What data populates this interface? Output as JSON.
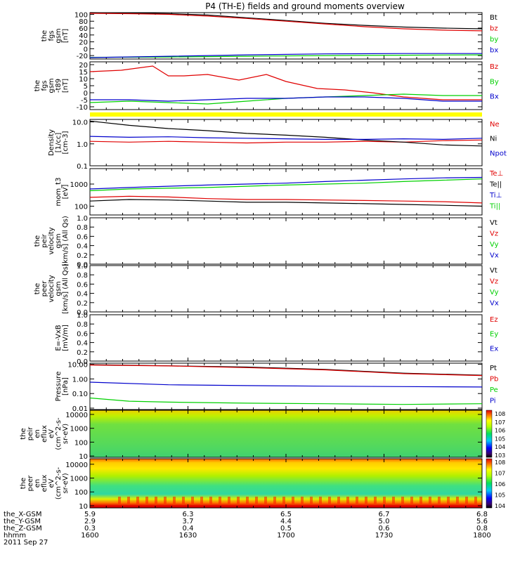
{
  "title": "P4 (TH-E) fields and ground moments overview",
  "colors": {
    "black": "#000000",
    "red": "#e00000",
    "green": "#00d000",
    "blue": "#0000cc",
    "yellow": "#ffff00"
  },
  "time_axis": {
    "rows": [
      {
        "label": "the_X-GSM",
        "values": [
          "5.9",
          "6.3",
          "6.5",
          "6.7",
          "6.8"
        ]
      },
      {
        "label": "the_Y-GSM",
        "values": [
          "2.9",
          "3.7",
          "4.4",
          "5.0",
          "5.6"
        ]
      },
      {
        "label": "the_Z-GSM",
        "values": [
          "0.3",
          "0.4",
          "0.5",
          "0.6",
          "0.8"
        ]
      },
      {
        "label": "hhmm",
        "values": [
          "1600",
          "1630",
          "1700",
          "1730",
          "1800"
        ]
      }
    ],
    "date": "2011 Sep 27"
  },
  "chart_data": [
    {
      "id": "p1",
      "type": "line",
      "ylabel": [
        "the",
        "fgs",
        "gsm",
        "[nT]"
      ],
      "yscale": "linear",
      "ylim": [
        -30,
        105
      ],
      "ticks": [
        "100",
        "80",
        "60",
        "40",
        "20",
        "0",
        "-20"
      ],
      "tick_values": [
        100,
        80,
        60,
        40,
        20,
        0,
        -20
      ],
      "series": [
        {
          "name": "Bt",
          "color": "black",
          "x": [
            0,
            0.1,
            0.2,
            0.3,
            0.4,
            0.5,
            0.6,
            0.7,
            0.8,
            0.9,
            1
          ],
          "values": [
            105,
            104,
            102,
            98,
            90,
            82,
            74,
            68,
            63,
            60,
            58
          ]
        },
        {
          "name": "bz",
          "color": "red",
          "x": [
            0,
            0.1,
            0.2,
            0.3,
            0.4,
            0.5,
            0.6,
            0.7,
            0.8,
            0.9,
            1
          ],
          "values": [
            103,
            102,
            100,
            95,
            88,
            80,
            72,
            64,
            58,
            54,
            52
          ]
        },
        {
          "name": "by",
          "color": "green",
          "x": [
            0,
            0.2,
            0.4,
            0.6,
            0.8,
            1
          ],
          "values": [
            -25,
            -24,
            -22,
            -20,
            -19,
            -18
          ]
        },
        {
          "name": "bx",
          "color": "blue",
          "x": [
            0,
            0.2,
            0.4,
            0.6,
            0.8,
            1
          ],
          "values": [
            -26,
            -22,
            -18,
            -15,
            -14,
            -14
          ]
        }
      ]
    },
    {
      "id": "p2",
      "type": "line",
      "ylabel": [
        "the",
        "fgs",
        "gsm",
        "-t89",
        "[nT]"
      ],
      "yscale": "linear",
      "ylim": [
        -12,
        22
      ],
      "ticks": [
        "20",
        "15",
        "10",
        "5",
        "0",
        "-5",
        "-10"
      ],
      "tick_values": [
        20,
        15,
        10,
        5,
        0,
        -5,
        -10
      ],
      "series": [
        {
          "name": "Bz",
          "color": "red",
          "x": [
            0,
            0.08,
            0.16,
            0.2,
            0.24,
            0.3,
            0.38,
            0.45,
            0.5,
            0.58,
            0.65,
            0.72,
            0.8,
            0.9,
            1
          ],
          "values": [
            15,
            16,
            19,
            12,
            12,
            13,
            9,
            13,
            8,
            3,
            2,
            0,
            -3,
            -5,
            -5
          ]
        },
        {
          "name": "By",
          "color": "green",
          "x": [
            0,
            0.1,
            0.2,
            0.3,
            0.4,
            0.5,
            0.6,
            0.7,
            0.8,
            0.9,
            1
          ],
          "values": [
            -7,
            -6,
            -7,
            -8,
            -6,
            -4,
            -3,
            -2,
            -1,
            -2,
            -2
          ]
        },
        {
          "name": "Bx",
          "color": "blue",
          "x": [
            0,
            0.1,
            0.2,
            0.3,
            0.4,
            0.5,
            0.6,
            0.7,
            0.8,
            0.9,
            1
          ],
          "values": [
            -5,
            -5,
            -6,
            -5,
            -4,
            -4,
            -3,
            -3,
            -4,
            -6,
            -6
          ]
        }
      ]
    },
    {
      "id": "p3",
      "type": "line",
      "ylabel": [
        "Density",
        "[1/cc]",
        "[cm-3]"
      ],
      "yscale": "log",
      "ylim": [
        0.1,
        13
      ],
      "ticks": [
        "10.0",
        "1.0",
        "0.1"
      ],
      "tick_values": [
        10,
        1,
        0.1
      ],
      "series": [
        {
          "name": "Ne",
          "color": "red",
          "x": [
            0,
            0.1,
            0.2,
            0.3,
            0.4,
            0.5,
            0.6,
            0.7,
            0.8,
            0.9,
            1
          ],
          "values": [
            1.3,
            1.2,
            1.3,
            1.2,
            1.1,
            1.2,
            1.2,
            1.3,
            1.2,
            1.4,
            1.5
          ]
        },
        {
          "name": "Ni",
          "color": "black",
          "x": [
            0,
            0.1,
            0.2,
            0.3,
            0.4,
            0.5,
            0.6,
            0.7,
            0.8,
            0.9,
            1
          ],
          "values": [
            11,
            7,
            5,
            4,
            3,
            2.5,
            2,
            1.5,
            1.2,
            0.9,
            0.8
          ]
        },
        {
          "name": "Npot",
          "color": "blue",
          "x": [
            0,
            0.1,
            0.2,
            0.3,
            0.4,
            0.5,
            0.6,
            0.7,
            0.8,
            0.9,
            1
          ],
          "values": [
            2.2,
            2.0,
            2.1,
            1.9,
            1.8,
            1.7,
            1.6,
            1.6,
            1.7,
            1.6,
            1.8
          ]
        }
      ]
    },
    {
      "id": "p4",
      "type": "line",
      "ylabel": [
        "mom_t3",
        "[eV]"
      ],
      "yscale": "log",
      "ylim": [
        40,
        5000
      ],
      "ticks": [
        "1000",
        "100"
      ],
      "tick_values": [
        1000,
        100
      ],
      "series": [
        {
          "name": "Te⊥",
          "color": "red",
          "x": [
            0,
            0.1,
            0.2,
            0.3,
            0.4,
            0.5,
            0.6,
            0.7,
            0.8,
            0.9,
            1
          ],
          "values": [
            250,
            280,
            260,
            220,
            200,
            200,
            190,
            180,
            170,
            160,
            140
          ]
        },
        {
          "name": "Te||",
          "color": "black",
          "x": [
            0,
            0.1,
            0.2,
            0.3,
            0.4,
            0.5,
            0.6,
            0.7,
            0.8,
            0.9,
            1
          ],
          "values": [
            170,
            200,
            190,
            170,
            150,
            150,
            140,
            130,
            120,
            110,
            100
          ]
        },
        {
          "name": "Ti⊥",
          "color": "blue",
          "x": [
            0,
            0.1,
            0.2,
            0.3,
            0.4,
            0.5,
            0.6,
            0.7,
            0.8,
            0.9,
            1
          ],
          "values": [
            600,
            700,
            800,
            900,
            1000,
            1100,
            1300,
            1500,
            1700,
            1900,
            2000
          ]
        },
        {
          "name": "Ti||",
          "color": "green",
          "x": [
            0,
            0.1,
            0.2,
            0.3,
            0.4,
            0.5,
            0.6,
            0.7,
            0.8,
            0.9,
            1
          ],
          "values": [
            500,
            600,
            650,
            700,
            800,
            900,
            1000,
            1100,
            1300,
            1500,
            1700
          ]
        }
      ]
    },
    {
      "id": "p5",
      "type": "line",
      "ylabel": [
        "the",
        "peir",
        "velocity",
        "gsm",
        "[km/s] (All Qs)"
      ],
      "yscale": "linear",
      "ylim": [
        0,
        1
      ],
      "ticks": [
        "1.0",
        "0.8",
        "0.6",
        "0.4",
        "0.2",
        "0.0"
      ],
      "tick_values": [
        1,
        0.8,
        0.6,
        0.4,
        0.2,
        0
      ],
      "series": [
        {
          "name": "Vt",
          "color": "black",
          "values": []
        },
        {
          "name": "Vz",
          "color": "red",
          "values": []
        },
        {
          "name": "Vy",
          "color": "green",
          "values": []
        },
        {
          "name": "Vx",
          "color": "blue",
          "values": []
        }
      ]
    },
    {
      "id": "p6",
      "type": "line",
      "ylabel": [
        "the",
        "peer",
        "velocity",
        "gsm",
        "[km/s] (All Qs)"
      ],
      "yscale": "linear",
      "ylim": [
        0,
        1
      ],
      "ticks": [
        "1.0",
        "0.8",
        "0.6",
        "0.4",
        "0.2",
        "0.0"
      ],
      "tick_values": [
        1,
        0.8,
        0.6,
        0.4,
        0.2,
        0
      ],
      "series": [
        {
          "name": "Vt",
          "color": "black",
          "values": []
        },
        {
          "name": "Vz",
          "color": "red",
          "values": []
        },
        {
          "name": "Vy",
          "color": "green",
          "values": []
        },
        {
          "name": "Vx",
          "color": "blue",
          "values": []
        }
      ]
    },
    {
      "id": "p7",
      "type": "line",
      "ylabel": [
        "E=-VxB",
        "[mV/m]"
      ],
      "yscale": "linear",
      "ylim": [
        0,
        1
      ],
      "ticks": [
        "1.0",
        "0.8",
        "0.6",
        "0.4",
        "0.2",
        "0.0"
      ],
      "tick_values": [
        1,
        0.8,
        0.6,
        0.4,
        0.2,
        0
      ],
      "series": [
        {
          "name": "Ez",
          "color": "red",
          "values": []
        },
        {
          "name": "Ey",
          "color": "green",
          "values": []
        },
        {
          "name": "Ex",
          "color": "blue",
          "values": []
        }
      ]
    },
    {
      "id": "p8",
      "type": "line",
      "ylabel": [
        "Pressure",
        "[nPa]"
      ],
      "yscale": "log",
      "ylim": [
        0.008,
        12
      ],
      "ticks": [
        "10.00",
        "1.00",
        "0.10",
        "0.01"
      ],
      "tick_values": [
        10,
        1,
        0.1,
        0.01
      ],
      "series": [
        {
          "name": "Pt",
          "color": "black",
          "x": [
            0,
            0.2,
            0.4,
            0.6,
            0.8,
            1
          ],
          "values": [
            9.5,
            8,
            6.5,
            4.5,
            2.5,
            1.8
          ]
        },
        {
          "name": "Pb",
          "color": "red",
          "x": [
            0,
            0.2,
            0.4,
            0.6,
            0.8,
            1
          ],
          "values": [
            9,
            7.8,
            6,
            4.2,
            2.3,
            1.7
          ]
        },
        {
          "name": "Pe",
          "color": "green",
          "x": [
            0,
            0.1,
            0.2,
            0.4,
            0.6,
            0.8,
            1
          ],
          "values": [
            0.05,
            0.03,
            0.026,
            0.022,
            0.02,
            0.018,
            0.02
          ]
        },
        {
          "name": "Pi",
          "color": "blue",
          "x": [
            0,
            0.2,
            0.4,
            0.6,
            0.8,
            1
          ],
          "values": [
            0.6,
            0.4,
            0.35,
            0.32,
            0.3,
            0.28
          ]
        }
      ]
    },
    {
      "id": "p9",
      "type": "heatmap",
      "ylabel": [
        "the",
        "peir",
        "en",
        "eflux",
        "eV",
        "(cm^2-s-",
        "sr-eV)"
      ],
      "yscale": "log",
      "ylim": [
        8,
        20000
      ],
      "ticks": [
        "10000",
        "1000",
        "100",
        "10"
      ],
      "tick_values": [
        10000,
        1000,
        100,
        10
      ],
      "colorbar": {
        "labels": [
          "10^8",
          "10^7",
          "10^6",
          "10^5",
          "10^4",
          "10^3"
        ]
      }
    },
    {
      "id": "p10",
      "type": "heatmap",
      "ylabel": [
        "the",
        "peer",
        "en",
        "eflux",
        "eV",
        "(cm^2-s-",
        "sr-eV)"
      ],
      "yscale": "log",
      "ylim": [
        7,
        25000
      ],
      "ticks": [
        "10000",
        "1000",
        "100",
        "10"
      ],
      "tick_values": [
        10000,
        1000,
        100,
        10
      ],
      "colorbar": {
        "labels": [
          "10^8",
          "10^7",
          "10^6",
          "10^5",
          "10^4"
        ]
      }
    }
  ]
}
